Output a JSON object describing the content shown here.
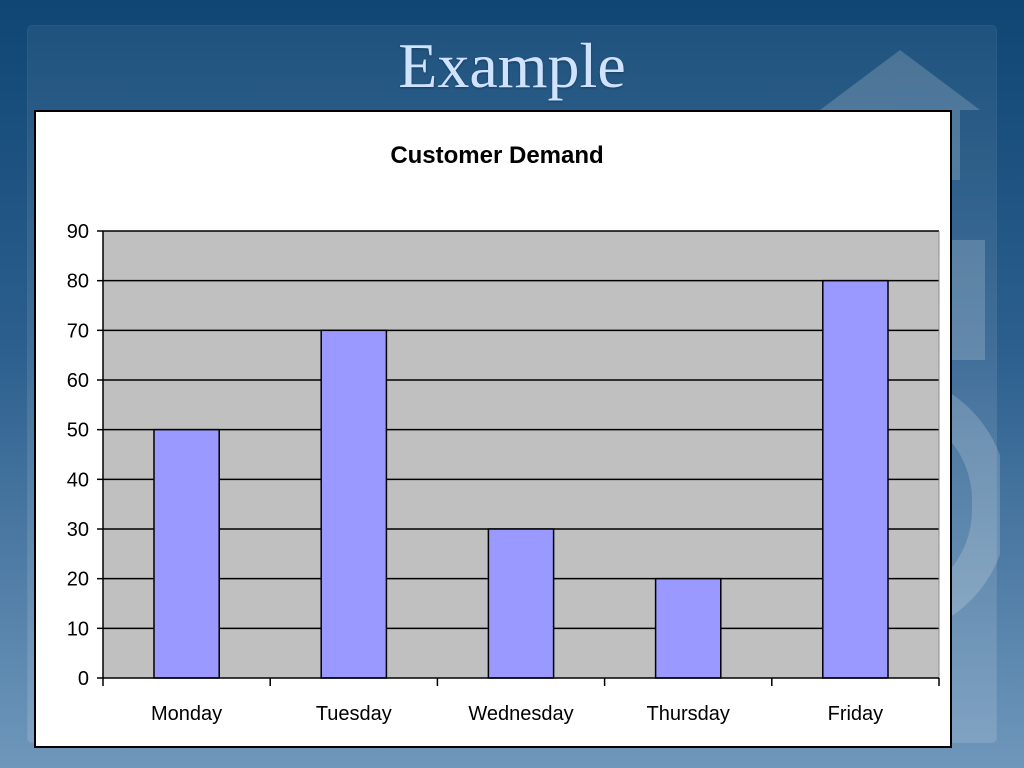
{
  "slide": {
    "title": "Example"
  },
  "chart_data": {
    "type": "bar",
    "title": "Customer Demand",
    "categories": [
      "Monday",
      "Tuesday",
      "Wednesday",
      "Thursday",
      "Friday"
    ],
    "values": [
      50,
      70,
      30,
      20,
      80
    ],
    "xlabel": "",
    "ylabel": "",
    "ylim": [
      0,
      90
    ],
    "y_ticks": [
      0,
      10,
      20,
      30,
      40,
      50,
      60,
      70,
      80,
      90
    ],
    "grid": true,
    "legend": "none",
    "colors": {
      "bar_fill": "#9999ff",
      "plot_area": "#c0c0c0",
      "axis": "#000000"
    }
  }
}
